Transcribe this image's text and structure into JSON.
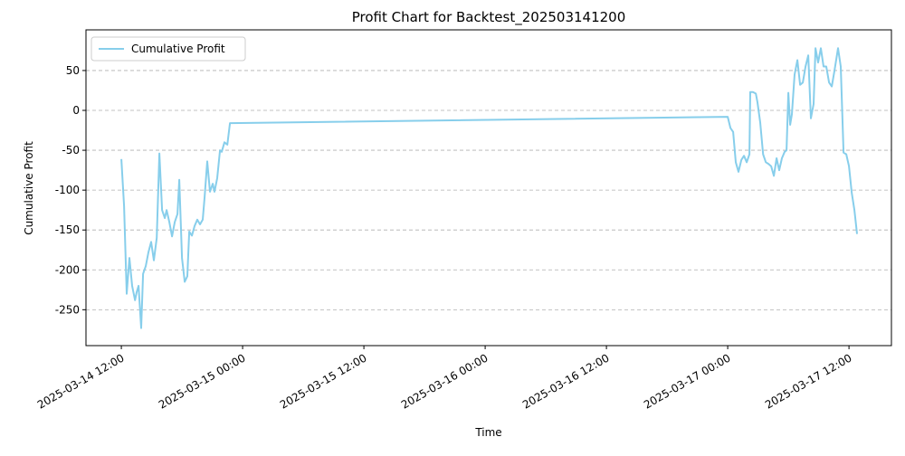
{
  "chart_data": {
    "type": "line",
    "title": "Profit Chart for Backtest_202503141200",
    "x_label": "Time",
    "y_label": "Cumulative Profit",
    "x": [
      "2025-03-14 12:00",
      "2025-03-14 12:16",
      "2025-03-14 12:32",
      "2025-03-14 12:48",
      "2025-03-14 13:04",
      "2025-03-14 13:21",
      "2025-03-14 13:31",
      "2025-03-14 13:42",
      "2025-03-14 13:58",
      "2025-03-14 14:09",
      "2025-03-14 14:25",
      "2025-03-14 14:41",
      "2025-03-14 14:57",
      "2025-03-14 15:13",
      "2025-03-14 15:30",
      "2025-03-14 15:46",
      "2025-03-14 16:02",
      "2025-03-14 16:18",
      "2025-03-14 16:29",
      "2025-03-14 16:45",
      "2025-03-14 17:01",
      "2025-03-14 17:17",
      "2025-03-14 17:33",
      "2025-03-14 17:44",
      "2025-03-14 18:00",
      "2025-03-14 18:16",
      "2025-03-14 18:32",
      "2025-03-14 18:43",
      "2025-03-14 18:59",
      "2025-03-14 19:15",
      "2025-03-14 19:31",
      "2025-03-14 19:47",
      "2025-03-14 20:03",
      "2025-03-14 20:14",
      "2025-03-14 20:30",
      "2025-03-14 20:46",
      "2025-03-14 21:03",
      "2025-03-14 21:13",
      "2025-03-14 21:29",
      "2025-03-14 21:46",
      "2025-03-14 21:56",
      "2025-03-14 22:12",
      "2025-03-14 22:29",
      "2025-03-14 22:45",
      "2025-03-17 00:00",
      "2025-03-17 00:16",
      "2025-03-17 00:32",
      "2025-03-17 00:48",
      "2025-03-17 01:04",
      "2025-03-17 01:21",
      "2025-03-17 01:37",
      "2025-03-17 01:53",
      "2025-03-17 02:09",
      "2025-03-17 02:14",
      "2025-03-17 02:30",
      "2025-03-17 02:47",
      "2025-03-17 02:57",
      "2025-03-17 03:13",
      "2025-03-17 03:30",
      "2025-03-17 03:46",
      "2025-03-17 04:02",
      "2025-03-17 04:18",
      "2025-03-17 04:34",
      "2025-03-17 04:50",
      "2025-03-17 05:06",
      "2025-03-17 05:22",
      "2025-03-17 05:38",
      "2025-03-17 05:49",
      "2025-03-17 06:00",
      "2025-03-17 06:11",
      "2025-03-17 06:21",
      "2025-03-17 06:37",
      "2025-03-17 06:54",
      "2025-03-17 07:10",
      "2025-03-17 07:26",
      "2025-03-17 07:42",
      "2025-03-17 07:58",
      "2025-03-17 08:14",
      "2025-03-17 08:30",
      "2025-03-17 08:41",
      "2025-03-17 08:57",
      "2025-03-17 09:13",
      "2025-03-17 09:29",
      "2025-03-17 09:45",
      "2025-03-17 10:02",
      "2025-03-17 10:18",
      "2025-03-17 10:34",
      "2025-03-17 10:55",
      "2025-03-17 11:11",
      "2025-03-17 11:28",
      "2025-03-17 11:44",
      "2025-03-17 12:00",
      "2025-03-17 12:16",
      "2025-03-17 12:32",
      "2025-03-17 12:48"
    ],
    "series": [
      {
        "name": "Cumulative Profit",
        "color": "#87ceeb",
        "values": [
          -61,
          -120,
          -230,
          -185,
          -220,
          -238,
          -228,
          -220,
          -273,
          -205,
          -195,
          -178,
          -165,
          -188,
          -160,
          -54,
          -125,
          -135,
          -125,
          -140,
          -158,
          -140,
          -130,
          -87,
          -185,
          -215,
          -208,
          -152,
          -157,
          -145,
          -137,
          -143,
          -137,
          -110,
          -64,
          -102,
          -92,
          -102,
          -85,
          -50,
          -52,
          -40,
          -43,
          -16,
          -8,
          -22,
          -27,
          -65,
          -77,
          -62,
          -57,
          -65,
          -55,
          23,
          23,
          21,
          10,
          -15,
          -55,
          -65,
          -67,
          -70,
          -82,
          -60,
          -75,
          -60,
          -52,
          -50,
          22,
          -18,
          -5,
          45,
          63,
          32,
          35,
          55,
          69,
          -10,
          8,
          78,
          60,
          78,
          55,
          55,
          35,
          30,
          50,
          78,
          55,
          -53,
          -55,
          -70,
          -103,
          -125,
          -155
        ]
      }
    ],
    "xlim": [
      "2025-03-14 08:30",
      "2025-03-17 16:12"
    ],
    "xticks": [
      "2025-03-14 12:00",
      "2025-03-15 00:00",
      "2025-03-15 12:00",
      "2025-03-16 00:00",
      "2025-03-16 12:00",
      "2025-03-17 00:00",
      "2025-03-17 12:00"
    ],
    "ylim": [
      -295,
      101
    ],
    "yticks": [
      -250,
      -200,
      -150,
      -100,
      -50,
      0,
      50
    ],
    "grid": "y",
    "legend": "upper left"
  }
}
